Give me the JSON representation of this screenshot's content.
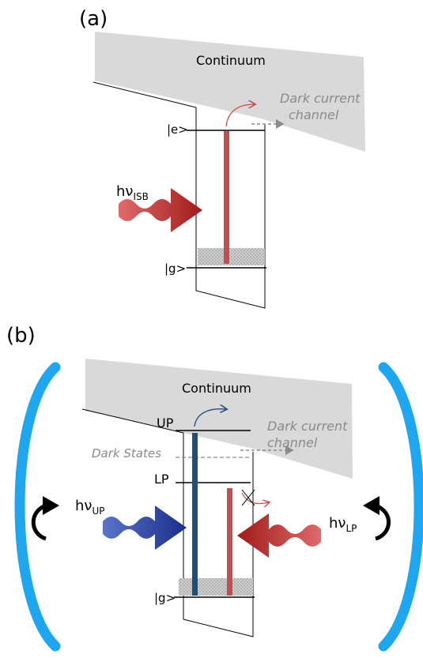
{
  "panel_a": {
    "label": "(a)",
    "continuum": "Continuum",
    "dark_current_1": "Dark current",
    "dark_current_2": "channel",
    "excited_state": "|e>",
    "ground_state": "|g>",
    "photon": "hν",
    "photon_sub": "ISB"
  },
  "panel_b": {
    "label": "(b)",
    "continuum": "Continuum",
    "dark_current_1": "Dark current",
    "dark_current_2": "channel",
    "upper_polariton": "UP",
    "dark_states": "Dark States",
    "lower_polariton": "LP",
    "ground_state": "|g>",
    "photon_up": "hν",
    "photon_up_sub": "UP",
    "photon_lp": "hν",
    "photon_lp_sub": "LP"
  },
  "colors": {
    "red_transition": "#c0504d",
    "blue_transition": "#1f4e79",
    "cavity_mirror": "#1ea7f0",
    "continuum_fill": "#d9d9d9",
    "dashed_arrow": "#8a8a8a"
  }
}
